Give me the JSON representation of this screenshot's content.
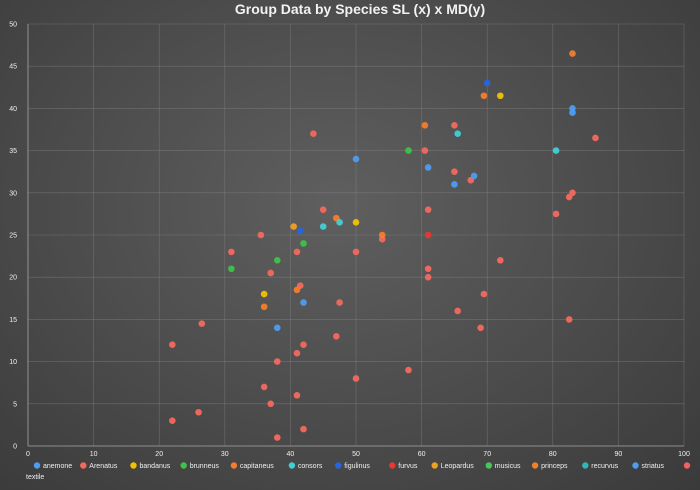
{
  "chart_data": {
    "type": "scatter",
    "title": "Group Data by Species SL (x) x MD(y)",
    "xlabel": "",
    "ylabel": "",
    "xlim": [
      0,
      100
    ],
    "ylim": [
      0,
      50
    ],
    "x_ticks": [
      0,
      10,
      20,
      30,
      40,
      50,
      60,
      70,
      80,
      90,
      100
    ],
    "y_ticks": [
      0,
      5,
      10,
      15,
      20,
      25,
      30,
      35,
      40,
      45,
      50
    ],
    "grid": true,
    "legend_position": "bottom",
    "series": [
      {
        "name": "anemone",
        "color": "#4f9cf0",
        "points": []
      },
      {
        "name": "Arenatus",
        "color": "#f2695f",
        "points": [
          [
            22,
            12
          ],
          [
            26.5,
            14.5
          ],
          [
            31,
            23
          ],
          [
            35.5,
            25
          ],
          [
            37,
            20.5
          ],
          [
            41,
            23
          ],
          [
            41.5,
            19
          ],
          [
            43.5,
            37
          ],
          [
            45,
            28
          ],
          [
            47.5,
            17
          ],
          [
            47,
            13
          ],
          [
            50,
            8
          ],
          [
            50,
            23
          ],
          [
            54,
            24.5
          ],
          [
            58,
            9
          ],
          [
            60.5,
            35
          ],
          [
            61,
            28
          ],
          [
            61,
            21
          ],
          [
            61,
            20
          ],
          [
            65,
            38
          ],
          [
            65,
            32.5
          ],
          [
            65.5,
            16
          ],
          [
            67.5,
            31.5
          ],
          [
            69,
            14
          ],
          [
            69.5,
            18
          ],
          [
            72,
            22
          ],
          [
            80.5,
            27.5
          ],
          [
            82.5,
            29.5
          ],
          [
            83,
            30
          ],
          [
            82.5,
            15
          ],
          [
            86.5,
            36.5
          ],
          [
            22,
            3
          ],
          [
            26,
            4
          ],
          [
            36,
            7
          ],
          [
            37,
            5
          ],
          [
            38,
            1
          ],
          [
            38,
            10
          ],
          [
            41,
            11
          ],
          [
            41,
            6
          ],
          [
            42,
            12
          ],
          [
            42,
            2
          ]
        ]
      },
      {
        "name": "bandanus",
        "color": "#f2c200",
        "points": [
          [
            36,
            18
          ],
          [
            50,
            26.5
          ],
          [
            72,
            41.5
          ]
        ]
      },
      {
        "name": "brunneus",
        "color": "#3fc24a",
        "points": [
          [
            31,
            21
          ],
          [
            38,
            22
          ],
          [
            42,
            24
          ],
          [
            58,
            35
          ]
        ]
      },
      {
        "name": "capitaneus",
        "color": "#f57d2c",
        "points": [
          [
            36,
            16.5
          ],
          [
            41,
            18.5
          ],
          [
            47,
            27
          ],
          [
            54,
            25
          ],
          [
            60.5,
            38
          ],
          [
            69.5,
            41.5
          ],
          [
            83,
            46.5
          ]
        ]
      },
      {
        "name": "consors",
        "color": "#3fd0d6",
        "points": [
          [
            45,
            26
          ],
          [
            47.5,
            26.5
          ],
          [
            65.5,
            37
          ],
          [
            80.5,
            35
          ]
        ]
      },
      {
        "name": "figulinus",
        "color": "#2466e0",
        "points": [
          [
            41.5,
            25.5
          ],
          [
            70,
            43
          ]
        ]
      },
      {
        "name": "furvus",
        "color": "#e8392e",
        "points": [
          [
            61,
            25
          ]
        ]
      },
      {
        "name": "Leopardus",
        "color": "#f0a020",
        "points": [
          [
            40.5,
            26
          ]
        ]
      },
      {
        "name": "musicus",
        "color": "#44c85c",
        "points": []
      },
      {
        "name": "princeps",
        "color": "#f0812c",
        "points": []
      },
      {
        "name": "recurvus",
        "color": "#35b5b5",
        "points": []
      },
      {
        "name": "striatus",
        "color": "#4f9cf0",
        "points": [
          [
            38,
            14
          ],
          [
            42,
            17
          ],
          [
            50,
            34
          ],
          [
            61,
            33
          ],
          [
            65,
            31
          ],
          [
            68,
            32
          ],
          [
            83,
            39.5
          ],
          [
            83,
            40
          ]
        ]
      },
      {
        "name": "textile",
        "color": "#f26060",
        "points": []
      }
    ]
  }
}
